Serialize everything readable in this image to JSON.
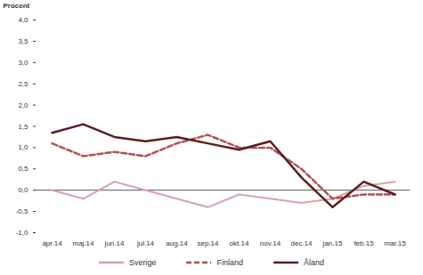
{
  "chart_data": {
    "type": "line",
    "y_label": "Procent",
    "categories": [
      "apr.14",
      "maj.14",
      "jun.14",
      "jul.14",
      "aug.14",
      "sep.14",
      "okt.14",
      "nov.14",
      "dec.14",
      "jan.15",
      "feb.15",
      "mar.15"
    ],
    "series": [
      {
        "name": "Sverige",
        "color": "#d8a3a3",
        "line_style": "solid",
        "values": [
          0.0,
          -0.2,
          0.2,
          0.0,
          -0.2,
          -0.4,
          -0.1,
          -0.2,
          -0.3,
          -0.2,
          0.1,
          0.2
        ]
      },
      {
        "name": "Finland",
        "color": "#b4504c",
        "line_style": "dashed",
        "values": [
          1.1,
          0.8,
          0.9,
          0.8,
          1.1,
          1.3,
          1.0,
          1.0,
          0.5,
          -0.2,
          -0.1,
          -0.1
        ]
      },
      {
        "name": "Åland",
        "color": "#5a1e1e",
        "line_style": "solid",
        "values": [
          1.35,
          1.55,
          1.25,
          1.15,
          1.25,
          1.1,
          0.95,
          1.15,
          0.3,
          -0.4,
          0.2,
          -0.1
        ]
      }
    ],
    "ylim": [
      -1.0,
      4.0
    ],
    "yticks": [
      {
        "value": -1.0,
        "label": "-1,0"
      },
      {
        "value": -0.5,
        "label": "-0,5"
      },
      {
        "value": 0.0,
        "label": "0,0"
      },
      {
        "value": 0.5,
        "label": "0,5"
      },
      {
        "value": 1.0,
        "label": "1,0"
      },
      {
        "value": 1.5,
        "label": "1,5"
      },
      {
        "value": 2.0,
        "label": "2,0"
      },
      {
        "value": 2.5,
        "label": "2,5"
      },
      {
        "value": 3.0,
        "label": "3,0"
      },
      {
        "value": 3.5,
        "label": "3,5"
      },
      {
        "value": 4.0,
        "label": "4,0"
      }
    ],
    "grid": false,
    "legend": "bottom"
  }
}
